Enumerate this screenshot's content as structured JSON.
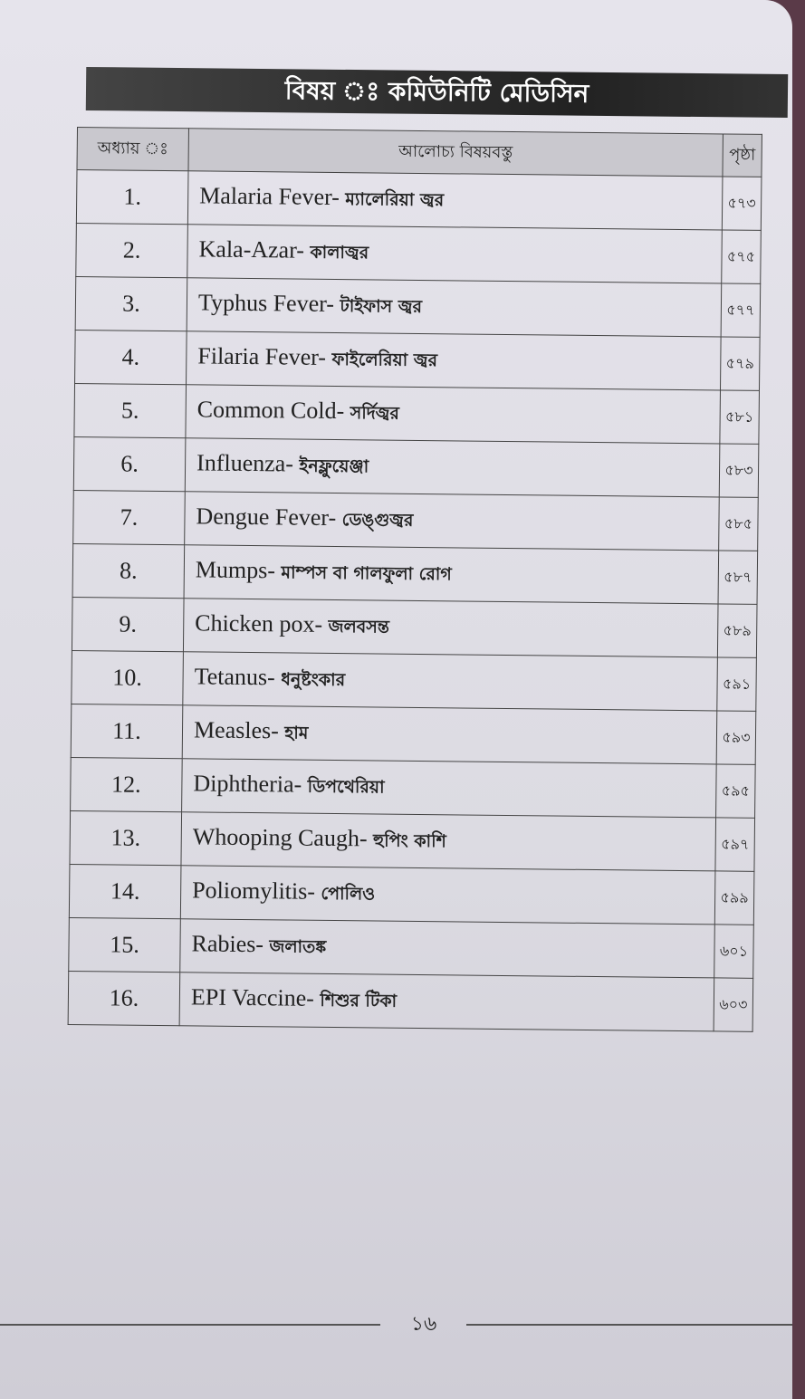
{
  "title": "বিষয় ঃ কমিউনিটি মেডিসিন",
  "headers": {
    "chapter": "অধ্যায় ঃ",
    "topic": "আলোচ্য বিষয়বস্তু",
    "page": "পৃষ্ঠা"
  },
  "rows": [
    {
      "no": "1.",
      "en": "Malaria Fever-",
      "bn": "ম্যালেরিয়া জ্বর",
      "page": "৫৭৩"
    },
    {
      "no": "2.",
      "en": "Kala-Azar-",
      "bn": "কালাজ্বর",
      "page": "৫৭৫"
    },
    {
      "no": "3.",
      "en": "Typhus Fever-",
      "bn": "টাইফাস জ্বর",
      "page": "৫৭৭"
    },
    {
      "no": "4.",
      "en": "Filaria Fever-",
      "bn": "ফাইলেরিয়া জ্বর",
      "page": "৫৭৯"
    },
    {
      "no": "5.",
      "en": "Common Cold-",
      "bn": "সর্দিজ্বর",
      "page": "৫৮১"
    },
    {
      "no": "6.",
      "en": "Influenza-",
      "bn": "ইনফ্লুয়েঞ্জা",
      "page": "৫৮৩"
    },
    {
      "no": "7.",
      "en": "Dengue Fever-",
      "bn": "ডেঙ্গুজ্বর",
      "page": "৫৮৫"
    },
    {
      "no": "8.",
      "en": "Mumps-",
      "bn": "মাম্পস বা গালফুলা রোগ",
      "page": "৫৮৭"
    },
    {
      "no": "9.",
      "en": "Chicken pox-",
      "bn": "জলবসন্ত",
      "page": "৫৮৯"
    },
    {
      "no": "10.",
      "en": "Tetanus-",
      "bn": "ধনুষ্টংকার",
      "page": "৫৯১"
    },
    {
      "no": "11.",
      "en": "Measles-",
      "bn": "হাম",
      "page": "৫৯৩"
    },
    {
      "no": "12.",
      "en": "Diphtheria-",
      "bn": "ডিপথেরিয়া",
      "page": "৫৯৫"
    },
    {
      "no": "13.",
      "en": "Whooping Caugh-",
      "bn": "হুপিং কাশি",
      "page": "৫৯৭"
    },
    {
      "no": "14.",
      "en": "Poliomylitis-",
      "bn": "পোলিও",
      "page": "৫৯৯"
    },
    {
      "no": "15.",
      "en": "Rabies-",
      "bn": "জলাতঙ্ক",
      "page": "৬০১"
    },
    {
      "no": "16.",
      "en": "EPI Vaccine-",
      "bn": "শিশুর টিকা",
      "page": "৬০৩"
    }
  ],
  "page_number": "১৬"
}
